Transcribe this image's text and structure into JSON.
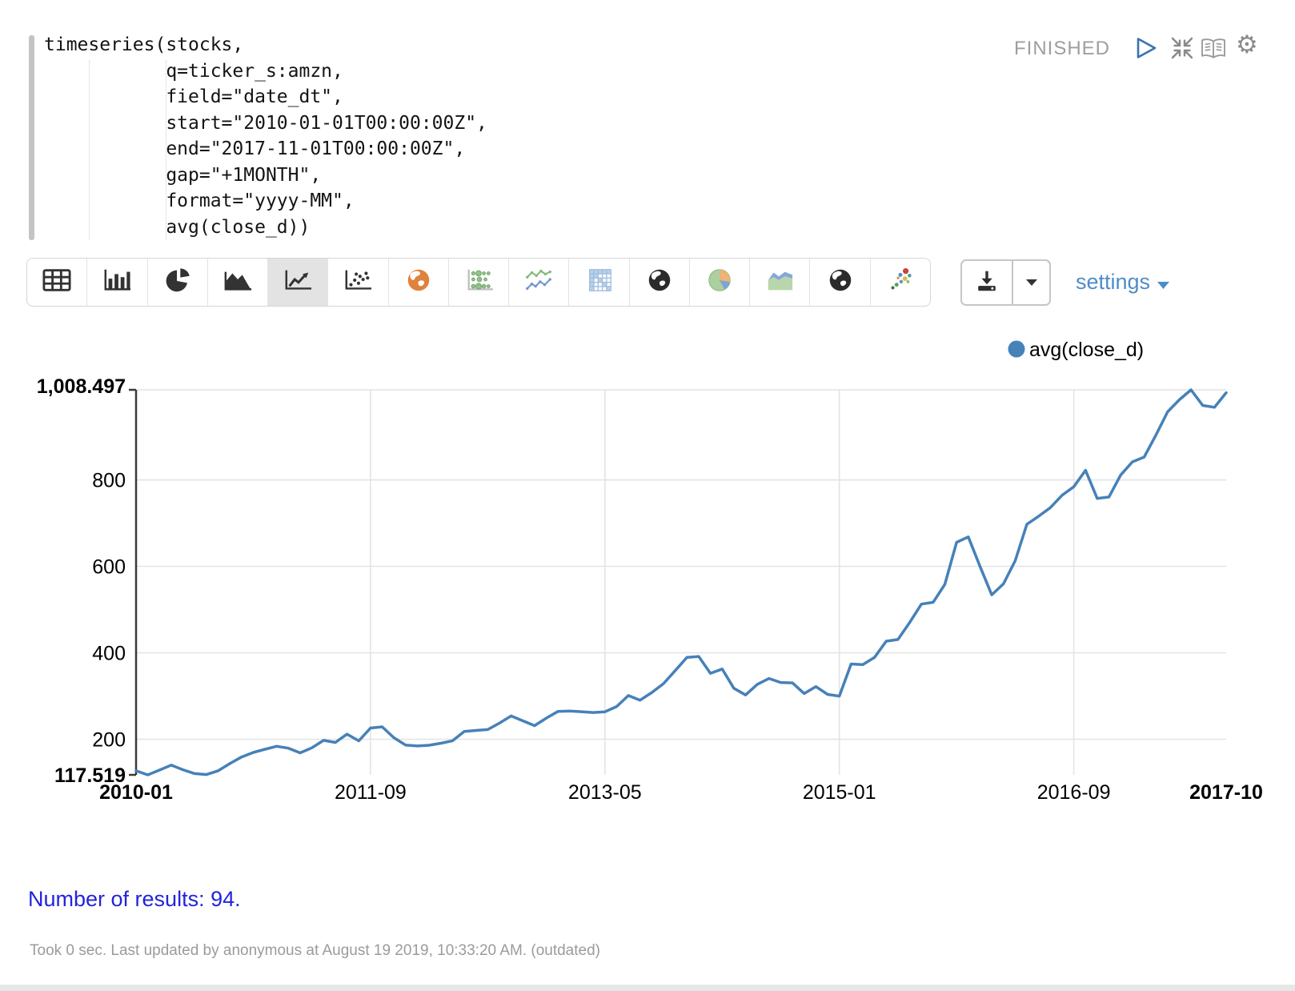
{
  "paragraph": {
    "status": "FINISHED",
    "code_lines": [
      "timeseries(stocks,",
      "           q=ticker_s:amzn,",
      "           field=\"date_dt\",",
      "           start=\"2010-01-01T00:00:00Z\",",
      "           end=\"2017-11-01T00:00:00Z\",",
      "           gap=\"+1MONTH\",",
      "           format=\"yyyy-MM\",",
      "           avg(close_d))"
    ],
    "controls": [
      {
        "name": "run",
        "icon": "play-icon"
      },
      {
        "name": "collapse",
        "icon": "compress-icon"
      },
      {
        "name": "show-editor",
        "icon": "book-icon"
      },
      {
        "name": "paragraph-settings",
        "icon": "gear-icon"
      }
    ]
  },
  "toolbar": {
    "chart_types": [
      {
        "name": "table",
        "selected": false
      },
      {
        "name": "bar-chart",
        "selected": false
      },
      {
        "name": "pie-chart",
        "selected": false
      },
      {
        "name": "area-chart",
        "selected": false
      },
      {
        "name": "line-chart",
        "selected": true
      },
      {
        "name": "scatter-chart",
        "selected": false
      },
      {
        "name": "globe-orange",
        "selected": false
      },
      {
        "name": "dot-matrix",
        "selected": false
      },
      {
        "name": "multi-line",
        "selected": false
      },
      {
        "name": "heatmap",
        "selected": false
      },
      {
        "name": "globe-dark",
        "selected": false
      },
      {
        "name": "pie-colored",
        "selected": false
      },
      {
        "name": "area-colored",
        "selected": false
      },
      {
        "name": "globe-dark-2",
        "selected": false
      },
      {
        "name": "scatter-colored",
        "selected": false
      }
    ],
    "settings_label": "settings"
  },
  "chart_data": {
    "type": "line",
    "legend": "avg(close_d)",
    "line_color": "#4681b8",
    "grid": true,
    "legend_position": "top-right",
    "y_min": 117.519,
    "y_max": 1008.497,
    "y_min_label": "117.519",
    "y_max_label": "1,008.497",
    "y_ticks": [
      200,
      400,
      600,
      800
    ],
    "x_tick_indices": [
      0,
      20,
      40,
      60,
      80,
      93
    ],
    "x_tick_labels": [
      "2010-01",
      "2011-09",
      "2013-05",
      "2015-01",
      "2016-09",
      "2017-10"
    ],
    "months": [
      "2010-01",
      "2010-02",
      "2010-03",
      "2010-04",
      "2010-05",
      "2010-06",
      "2010-07",
      "2010-08",
      "2010-09",
      "2010-10",
      "2010-11",
      "2010-12",
      "2011-01",
      "2011-02",
      "2011-03",
      "2011-04",
      "2011-05",
      "2011-06",
      "2011-07",
      "2011-08",
      "2011-09",
      "2011-10",
      "2011-11",
      "2011-12",
      "2012-01",
      "2012-02",
      "2012-03",
      "2012-04",
      "2012-05",
      "2012-06",
      "2012-07",
      "2012-08",
      "2012-09",
      "2012-10",
      "2012-11",
      "2012-12",
      "2013-01",
      "2013-02",
      "2013-03",
      "2013-04",
      "2013-05",
      "2013-06",
      "2013-07",
      "2013-08",
      "2013-09",
      "2013-10",
      "2013-11",
      "2013-12",
      "2014-01",
      "2014-02",
      "2014-03",
      "2014-04",
      "2014-05",
      "2014-06",
      "2014-07",
      "2014-08",
      "2014-09",
      "2014-10",
      "2014-11",
      "2014-12",
      "2015-01",
      "2015-02",
      "2015-03",
      "2015-04",
      "2015-05",
      "2015-06",
      "2015-07",
      "2015-08",
      "2015-09",
      "2015-10",
      "2015-11",
      "2015-12",
      "2016-01",
      "2016-02",
      "2016-03",
      "2016-04",
      "2016-05",
      "2016-06",
      "2016-07",
      "2016-08",
      "2016-09",
      "2016-10",
      "2016-11",
      "2016-12",
      "2017-01",
      "2017-02",
      "2017-03",
      "2017-04",
      "2017-05",
      "2017-06",
      "2017-07",
      "2017-08",
      "2017-09",
      "2017-10"
    ],
    "values": [
      126.9,
      117.519,
      128.7,
      140.2,
      129.4,
      120.5,
      118.3,
      126.9,
      143.6,
      158.9,
      169.3,
      176.8,
      183.6,
      179.2,
      168.5,
      180.1,
      197.4,
      192.6,
      211.8,
      196.2,
      225.9,
      228.7,
      203.4,
      186.5,
      184.3,
      186.1,
      190.7,
      196.5,
      217.9,
      220.3,
      222.4,
      237.1,
      253.8,
      242.6,
      231.4,
      248.9,
      264.5,
      265.3,
      263.7,
      261.9,
      263.4,
      275.7,
      301.0,
      290.4,
      308.1,
      328.6,
      358.9,
      389.4,
      391.5,
      352.6,
      362.4,
      317.9,
      302.3,
      327.1,
      340.5,
      331.2,
      330.4,
      305.8,
      321.9,
      303.6,
      299.8,
      374.1,
      372.7,
      389.3,
      426.9,
      430.8,
      470.2,
      512.6,
      516.9,
      558.4,
      655.6,
      668.3,
      599.7,
      534.2,
      559.4,
      613.1,
      697.5,
      716.0,
      735.8,
      764.6,
      784.1,
      822.3,
      757.2,
      760.5,
      811.4,
      841.7,
      852.9,
      903.2,
      957.6,
      985.4,
      1008.497,
      972.3,
      968.1,
      1001.8
    ]
  },
  "results": {
    "text": "Number of results: 94."
  },
  "footer": {
    "text": "Took 0 sec. Last updated by anonymous at August 19 2019, 10:33:20 AM. (outdated)"
  }
}
